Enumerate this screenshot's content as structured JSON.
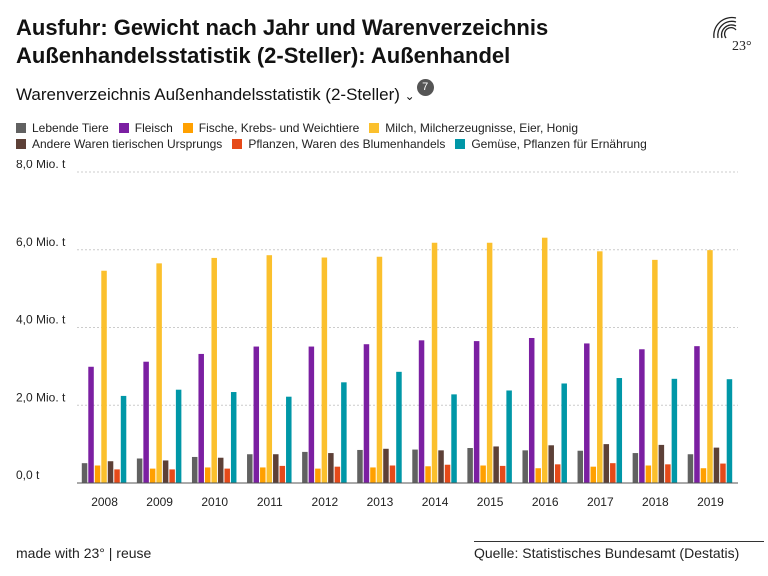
{
  "title": "Ausfuhr: Gewicht nach Jahr und Warenverzeichnis Außenhandelsstatistik (2-Steller): Außenhandel",
  "subtitle": "Warenverzeichnis Außenhandelsstatistik (2-Steller)",
  "subtitle_badge": "7",
  "logo_text": "23°",
  "footer": {
    "made_with": "made with 23° | reuse",
    "source": "Quelle: Statistisches Bundesamt (Destatis)"
  },
  "chart_data": {
    "type": "bar",
    "title": "",
    "xlabel": "",
    "ylabel": "",
    "ylim": [
      0,
      8
    ],
    "grid": true,
    "legend_position": "top-left",
    "y_ticks": [
      {
        "value": 0,
        "label": "0,0 t"
      },
      {
        "value": 2,
        "label": "2,0 Mio. t"
      },
      {
        "value": 4,
        "label": "4,0 Mio. t"
      },
      {
        "value": 6,
        "label": "6,0 Mio. t"
      },
      {
        "value": 8,
        "label": "8,0 Mio. t"
      }
    ],
    "categories": [
      "2008",
      "2009",
      "2010",
      "2011",
      "2012",
      "2013",
      "2014",
      "2015",
      "2016",
      "2017",
      "2018",
      "2019"
    ],
    "series": [
      {
        "name": "Lebende Tiere",
        "color": "#616161",
        "values": [
          0.51,
          0.63,
          0.67,
          0.74,
          0.8,
          0.85,
          0.86,
          0.9,
          0.84,
          0.83,
          0.77,
          0.74
        ]
      },
      {
        "name": "Fleisch",
        "color": "#7b1fa2",
        "values": [
          2.99,
          3.12,
          3.32,
          3.51,
          3.51,
          3.57,
          3.67,
          3.65,
          3.73,
          3.59,
          3.44,
          3.52
        ]
      },
      {
        "name": "Fische, Krebs- und Weichtiere",
        "color": "#ffa000",
        "values": [
          0.45,
          0.37,
          0.4,
          0.4,
          0.37,
          0.4,
          0.43,
          0.45,
          0.38,
          0.42,
          0.45,
          0.38
        ]
      },
      {
        "name": "Milch, Milcherzeugnisse, Eier, Honig",
        "color": "#fbc02d",
        "values": [
          5.46,
          5.65,
          5.79,
          5.86,
          5.8,
          5.82,
          6.18,
          6.18,
          6.31,
          5.96,
          5.74,
          5.99
        ]
      },
      {
        "name": "Andere Waren tierischen Ursprungs",
        "color": "#5d4037",
        "values": [
          0.56,
          0.58,
          0.65,
          0.74,
          0.77,
          0.88,
          0.84,
          0.94,
          0.97,
          1.0,
          0.98,
          0.91
        ]
      },
      {
        "name": "Pflanzen, Waren des Blumenhandels",
        "color": "#e64a19",
        "values": [
          0.35,
          0.35,
          0.37,
          0.44,
          0.42,
          0.45,
          0.47,
          0.44,
          0.48,
          0.51,
          0.48,
          0.5
        ]
      },
      {
        "name": "Gemüse, Pflanzen für Ernährung",
        "color": "#0097a7",
        "values": [
          2.24,
          2.4,
          2.34,
          2.22,
          2.59,
          2.86,
          2.28,
          2.38,
          2.56,
          2.7,
          2.68,
          2.67
        ]
      }
    ]
  }
}
